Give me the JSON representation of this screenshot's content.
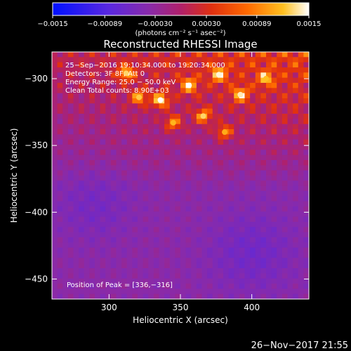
{
  "chart_data": {
    "type": "heatmap",
    "title": "Reconstructed RHESSI Image",
    "xlabel": "Heliocentric X (arcsec)",
    "ylabel": "Heliocentric Y (arcsec)",
    "xlim": [
      260,
      440
    ],
    "ylim": [
      -465,
      -280
    ],
    "x_ticks": [
      300,
      350,
      400
    ],
    "x_tick_labels": [
      "300",
      "350",
      "400"
    ],
    "y_ticks": [
      -300,
      -350,
      -400,
      -450
    ],
    "y_tick_labels": [
      "−300",
      "−350",
      "−400",
      "−450"
    ],
    "colorbar": {
      "range": [
        -0.0015,
        0.0015
      ],
      "tick_values": [
        -0.0015,
        -0.00089,
        -0.0003,
        0.0003,
        0.00089,
        0.0015
      ],
      "tick_labels": [
        "−0.0015",
        "−0.00089",
        "−0.00030",
        "0.00030",
        "0.00089",
        "0.0015"
      ],
      "unit_label": "(photons cm⁻² s⁻¹ asec⁻²)"
    },
    "annotations": [
      "25−Sep−2016 19:10:34.000 to 19:20:34.000",
      "Detectors: 3F 8F, Att 0",
      "Energy Range: 25.0 − 50.0 keV",
      "Clean     Total counts: 8.90E+03"
    ],
    "peak_label": "Position of Peak = [336,−316]",
    "peak": {
      "x": 336,
      "y": -316
    },
    "bright_spots": [
      {
        "x": 336,
        "y": -316,
        "value": 0.00135
      },
      {
        "x": 356,
        "y": -305,
        "value": 0.0013
      },
      {
        "x": 377,
        "y": -297,
        "value": 0.00125
      },
      {
        "x": 392,
        "y": -312,
        "value": 0.0012
      },
      {
        "x": 312,
        "y": -296,
        "value": 0.0011
      },
      {
        "x": 321,
        "y": -314,
        "value": 0.00105
      },
      {
        "x": 366,
        "y": -328,
        "value": 0.0011
      },
      {
        "x": 410,
        "y": -300,
        "value": 0.001
      },
      {
        "x": 345,
        "y": -333,
        "value": 0.00095
      },
      {
        "x": 381,
        "y": -340,
        "value": 0.0009
      }
    ],
    "colormap": "blue-purple-red-yellow-white"
  },
  "footer_date": "26−Nov−2017 21:55",
  "colors": {
    "background": "#000000",
    "text": "#ffffff"
  }
}
